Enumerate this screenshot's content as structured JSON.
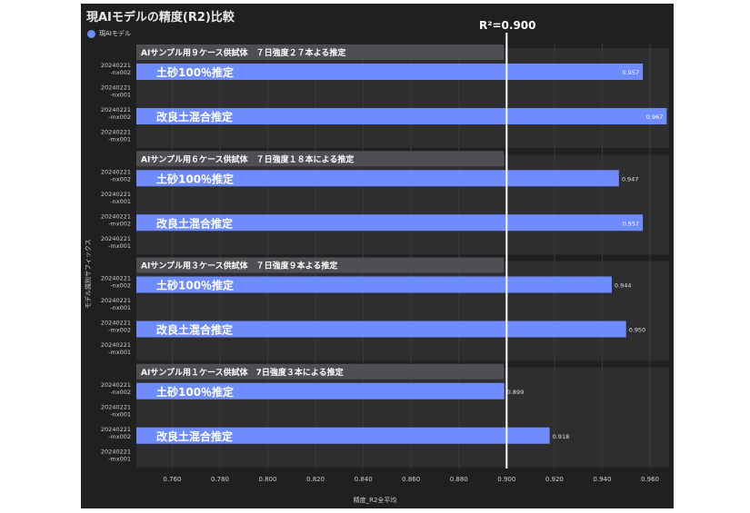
{
  "chart_data": {
    "type": "bar",
    "orientation": "horizontal",
    "title": "現AIモデルの精度(R2)比較",
    "xlabel": "精度_R2全平均",
    "ylabel": "モデル識別サフィックス",
    "xlim": [
      0.745,
      0.968
    ],
    "x_ticks": [
      "0.760",
      "0.780",
      "0.800",
      "0.820",
      "0.840",
      "0.860",
      "0.880",
      "0.900",
      "0.920",
      "0.940",
      "0.960"
    ],
    "legend": [
      {
        "name": "現AIモデル",
        "color": "#6f8cff"
      }
    ],
    "legend_position": "top-left",
    "reference_line": {
      "value": 0.9,
      "label": "R²=0.900"
    },
    "grid": true,
    "groups": [
      {
        "title": "AIサンプル用９ケース供試体　７日強度２７本よる推定",
        "bars": [
          {
            "label": "土砂100％推定",
            "value": 0.957,
            "value_label": "0.957"
          },
          {
            "label": "改良土混合推定",
            "value": 0.967,
            "value_label": "0.967"
          }
        ]
      },
      {
        "title": "AIサンプル用６ケース供試体　７日強度１８本による推定",
        "bars": [
          {
            "label": "土砂100％推定",
            "value": 0.947,
            "value_label": "0.947"
          },
          {
            "label": "改良土混合推定",
            "value": 0.957,
            "value_label": "0.957"
          }
        ]
      },
      {
        "title": "AIサンプル用３ケース供試体　７日強度９本よる推定",
        "bars": [
          {
            "label": "土砂100％推定",
            "value": 0.944,
            "value_label": "0.944"
          },
          {
            "label": "改良土混合推定",
            "value": 0.95,
            "value_label": "0.950"
          }
        ]
      },
      {
        "title": "AIサンプル用１ケース供試体　7日強度３本による推定",
        "bars": [
          {
            "label": "土砂100％推定",
            "value": 0.899,
            "value_label": "0.899"
          },
          {
            "label": "改良土混合推定",
            "value": 0.918,
            "value_label": "0.918"
          }
        ]
      }
    ],
    "row_labels": [
      [
        "20240221",
        "-nx002"
      ],
      [
        "20240221",
        "-nx001"
      ],
      [
        "20240221",
        "-mx002"
      ],
      [
        "20240221",
        "-mx001"
      ]
    ],
    "colors": {
      "bar": "#6f8cff",
      "header": "#4d4f52",
      "band": "#2e2e30",
      "grid": "#3a3a3a",
      "refline": "#ffffff"
    }
  }
}
